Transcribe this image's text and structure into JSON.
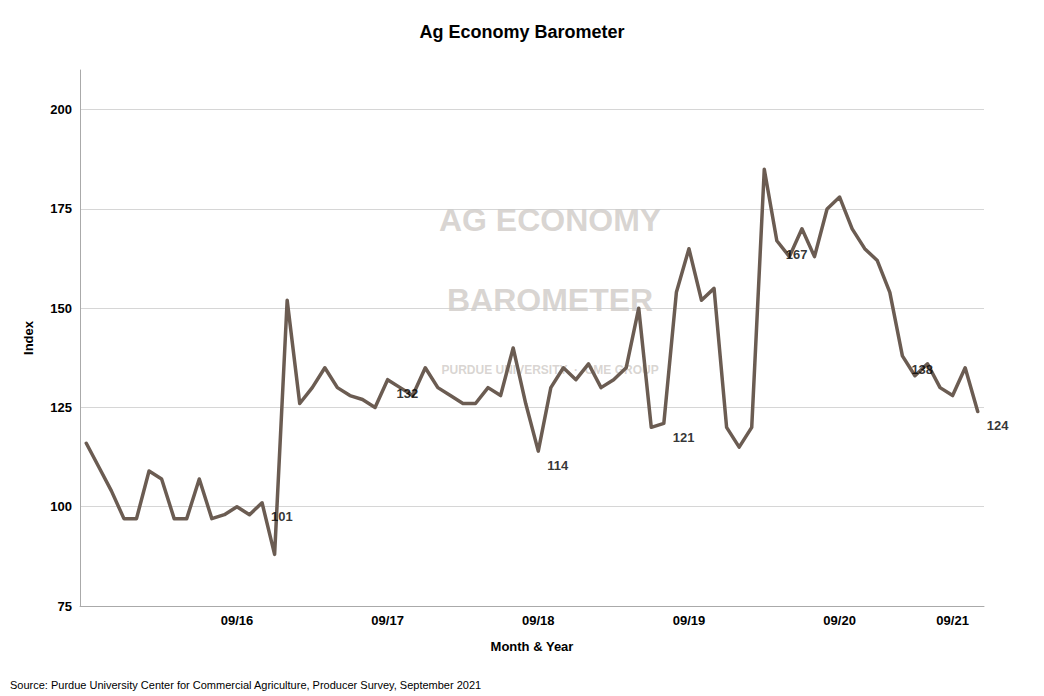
{
  "chart_data": {
    "type": "line",
    "title": "Ag Economy Barometer",
    "xlabel": "Month & Year",
    "ylabel": "Index",
    "source": "Source: Purdue University Center for Commercial Agriculture, Producer Survey, September 2021",
    "watermark": [
      "AG ECONOMY",
      "BAROMETER",
      "PURDUE UNIVERSITY  ·  CME GROUP"
    ],
    "color": "#6b5c52",
    "categories": [
      null,
      null,
      null,
      null,
      null,
      null,
      null,
      null,
      null,
      null,
      null,
      null,
      "09/16",
      null,
      null,
      null,
      null,
      null,
      null,
      null,
      null,
      null,
      null,
      null,
      "09/17",
      null,
      null,
      null,
      null,
      null,
      null,
      null,
      null,
      null,
      null,
      null,
      "09/18",
      null,
      null,
      null,
      null,
      null,
      null,
      null,
      null,
      null,
      null,
      null,
      "09/19",
      null,
      null,
      null,
      null,
      null,
      null,
      null,
      null,
      null,
      null,
      null,
      "09/20",
      null,
      null,
      null,
      null,
      null,
      null,
      null,
      null,
      "09/21",
      null,
      null
    ],
    "values": [
      116,
      110,
      104,
      97,
      97,
      109,
      107,
      97,
      97,
      107,
      97,
      98,
      100,
      98,
      101,
      88,
      152,
      126,
      130,
      135,
      130,
      128,
      127,
      125,
      132,
      130,
      128,
      135,
      130,
      128,
      126,
      126,
      130,
      128,
      140,
      126,
      114,
      130,
      135,
      132,
      136,
      130,
      132,
      135,
      150,
      120,
      121,
      154,
      165,
      152,
      155,
      120,
      115,
      120,
      185,
      167,
      163,
      170,
      163,
      175,
      178,
      170,
      165,
      162,
      154,
      138,
      133,
      136,
      130,
      128,
      135,
      124
    ],
    "ylim": [
      75,
      210
    ],
    "yticks": [
      75,
      100,
      125,
      150,
      175,
      200
    ],
    "grid": true,
    "annotations": [
      {
        "x_idx": 14,
        "y": 101,
        "label": "101"
      },
      {
        "x_idx": 24,
        "y": 132,
        "label": "132"
      },
      {
        "x_idx": 36,
        "y": 114,
        "label": "114"
      },
      {
        "x_idx": 46,
        "y": 121,
        "label": "121"
      },
      {
        "x_idx": 55,
        "y": 167,
        "label": "167"
      },
      {
        "x_idx": 65,
        "y": 138,
        "label": "138"
      },
      {
        "x_idx": 71,
        "y": 124,
        "label": "124"
      }
    ]
  }
}
